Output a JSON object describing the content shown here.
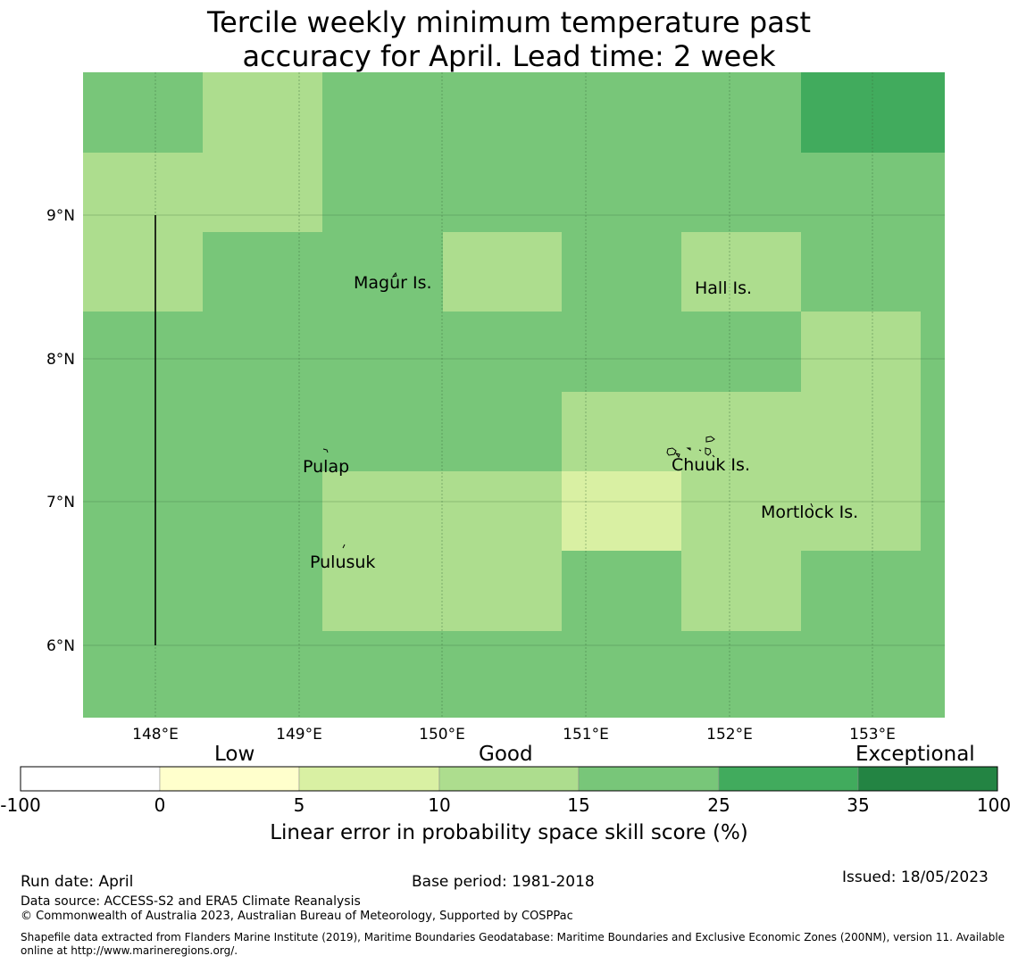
{
  "title_line1": "Tercile weekly minimum temperature past",
  "title_line2": "accuracy for April. Lead time: 2 week",
  "map": {
    "lon_labels": [
      "148°E",
      "149°E",
      "150°E",
      "151°E",
      "152°E",
      "153°E"
    ],
    "lat_labels": [
      "9°N",
      "8°N",
      "7°N",
      "6°N"
    ],
    "islands": [
      "Magur Is.",
      "Hall Is.",
      "Pulap",
      "Chuuk Is.",
      "Mortlock Is.",
      "Pulusuk"
    ]
  },
  "colorbar": {
    "category_labels": [
      "Low",
      "Good",
      "Exceptional"
    ],
    "ticks": [
      "-100",
      "0",
      "5",
      "10",
      "15",
      "25",
      "35",
      "100"
    ],
    "colors": [
      "#ffffff",
      "#ffffcc",
      "#d9f0a3",
      "#addd8e",
      "#78c679",
      "#41ab5d",
      "#238443"
    ],
    "title": "Linear error in probability space skill score (%)"
  },
  "footer": {
    "run_date": "Run date: April",
    "base_period": "Base period: 1981-2018",
    "issued": "Issued: 18/05/2023",
    "data_source": "Data source: ACCESS-S2 and ERA5 Climate Reanalysis",
    "copyright": "© Commonwealth of Australia 2023, Australian Bureau of Meteorology, Supported by COSPPac",
    "shapefile": "Shapefile data extracted from Flanders Marine Institute (2019), Maritime Boundaries Geodatabase: Maritime Boundaries and Exclusive Economic Zones (200NM), version 11. Available online at http://www.marineregions.org/."
  }
}
